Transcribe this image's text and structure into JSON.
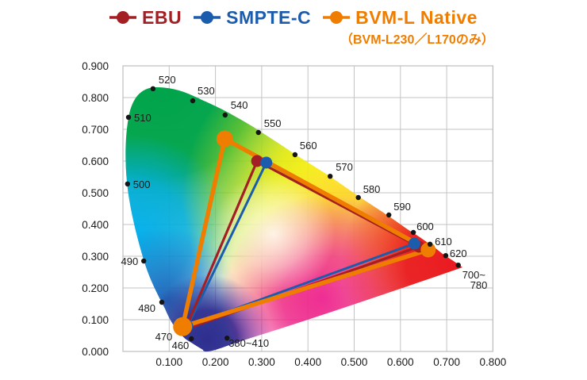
{
  "legend": {
    "items": [
      {
        "label": "EBU",
        "color": "#A41F24"
      },
      {
        "label": "SMPTE-C",
        "color": "#1B5CAD"
      },
      {
        "label": "BVM-L Native",
        "color": "#EF7D00"
      }
    ],
    "note": "（BVM-L230／L170のみ）",
    "note_color": "#EF7D00"
  },
  "chart_data": {
    "type": "line",
    "description": "CIE 1931 xy chromaticity diagram comparing color gamut triangles",
    "xlim": [
      0.0,
      0.8
    ],
    "ylim": [
      0.0,
      0.9
    ],
    "grid": true,
    "x_tick_values": [
      0.1,
      0.2,
      0.3,
      0.4,
      0.5,
      0.6,
      0.7,
      0.8
    ],
    "x_tick_labels": [
      "0.100",
      "0.200",
      "0.300",
      "0.400",
      "0.500",
      "0.600",
      "0.700",
      "0.800"
    ],
    "y_tick_values": [
      0.0,
      0.1,
      0.2,
      0.3,
      0.4,
      0.5,
      0.6,
      0.7,
      0.8,
      0.9
    ],
    "y_tick_labels": [
      "0.000",
      "0.100",
      "0.200",
      "0.300",
      "0.400",
      "0.500",
      "0.600",
      "0.700",
      "0.800",
      "0.900"
    ],
    "series": [
      {
        "name": "EBU",
        "color": "#A41F24",
        "points": {
          "red": [
            0.64,
            0.33
          ],
          "green": [
            0.29,
            0.6
          ],
          "blue": [
            0.135,
            0.07
          ]
        }
      },
      {
        "name": "SMPTE-C",
        "color": "#1B5CAD",
        "points": {
          "red": [
            0.63,
            0.34
          ],
          "green": [
            0.31,
            0.595
          ],
          "blue": [
            0.14,
            0.08
          ]
        }
      },
      {
        "name": "BVM-L Native",
        "color": "#EF7D00",
        "points": {
          "red": [
            0.66,
            0.32
          ],
          "green": [
            0.22,
            0.67
          ],
          "blue": [
            0.129,
            0.078
          ]
        }
      }
    ],
    "wavelength_markers": [
      {
        "label": "520",
        "x": 0.065,
        "y": 0.828
      },
      {
        "label": "530",
        "x": 0.151,
        "y": 0.79
      },
      {
        "label": "540",
        "x": 0.221,
        "y": 0.745
      },
      {
        "label": "550",
        "x": 0.293,
        "y": 0.69
      },
      {
        "label": "560",
        "x": 0.372,
        "y": 0.62
      },
      {
        "label": "570",
        "x": 0.448,
        "y": 0.552
      },
      {
        "label": "580",
        "x": 0.509,
        "y": 0.485
      },
      {
        "label": "590",
        "x": 0.575,
        "y": 0.43
      },
      {
        "label": "600",
        "x": 0.628,
        "y": 0.375
      },
      {
        "label": "610",
        "x": 0.664,
        "y": 0.338
      },
      {
        "label": "620",
        "x": 0.698,
        "y": 0.302
      },
      {
        "label": "700~",
        "label2": "780",
        "x": 0.725,
        "y": 0.272
      },
      {
        "label": "510",
        "x": 0.012,
        "y": 0.738
      },
      {
        "label": "500",
        "x": 0.01,
        "y": 0.528
      },
      {
        "label": "490",
        "x": 0.045,
        "y": 0.285
      },
      {
        "label": "480",
        "x": 0.084,
        "y": 0.155
      },
      {
        "label": "470",
        "x": 0.124,
        "y": 0.058,
        "dot": false
      },
      {
        "label": "460",
        "x": 0.148,
        "y": 0.04
      },
      {
        "label": "380~410",
        "x": 0.225,
        "y": 0.042
      }
    ]
  }
}
